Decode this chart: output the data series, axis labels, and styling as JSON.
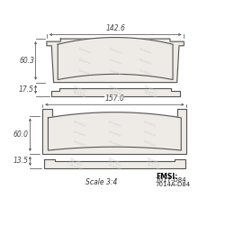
{
  "bg_color": "#ffffff",
  "line_color": "#555555",
  "pad_fill": "#eeebe6",
  "dim_color": "#444444",
  "watermark_color": "#cccccc",
  "top_pad": {
    "label_width": "142.6",
    "label_height": "60.3",
    "label_side": "17.5"
  },
  "bottom_pad": {
    "label_width": "157.0",
    "label_height": "60.0",
    "label_side": "13.5"
  },
  "scale_text": "Scale 3:4",
  "fmsi_text": "FMSI:",
  "fmsi_codes": [
    "7017-D84",
    "7014A-D84"
  ]
}
